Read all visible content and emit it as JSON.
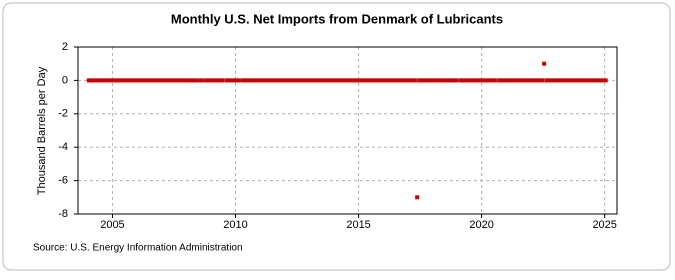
{
  "chart_data": {
    "type": "scatter",
    "title": "Monthly U.S. Net Imports from Denmark of Lubricants",
    "y_label": "Thousand Barrels per Day",
    "source": "Source: U.S. Energy Information Administration",
    "color": "#cc0000",
    "grid": true,
    "xlim": [
      2003.6,
      2025.5
    ],
    "ylim": [
      -8,
      2
    ],
    "xticks": [
      2005,
      2010,
      2015,
      2020,
      2025
    ],
    "yticks": [
      -8,
      -6,
      -4,
      -2,
      0,
      2
    ],
    "x": [
      2004.04,
      2004.13,
      2004.21,
      2004.29,
      2004.38,
      2004.46,
      2004.54,
      2004.63,
      2004.71,
      2004.79,
      2004.88,
      2004.96,
      2005.04,
      2005.13,
      2005.21,
      2005.29,
      2005.38,
      2005.46,
      2005.54,
      2005.63,
      2005.71,
      2005.79,
      2005.88,
      2005.96,
      2006.04,
      2006.13,
      2006.21,
      2006.29,
      2006.38,
      2006.46,
      2006.54,
      2006.63,
      2006.71,
      2006.79,
      2006.88,
      2006.96,
      2007.04,
      2007.13,
      2007.21,
      2007.29,
      2007.38,
      2007.46,
      2007.54,
      2007.63,
      2007.71,
      2007.79,
      2007.88,
      2007.96,
      2008.04,
      2008.13,
      2008.21,
      2008.29,
      2008.38,
      2008.46,
      2008.54,
      2008.63,
      2008.71,
      2008.79,
      2008.88,
      2008.96,
      2009.04,
      2009.13,
      2009.21,
      2009.29,
      2009.38,
      2009.46,
      2009.54,
      2009.63,
      2009.71,
      2009.79,
      2009.88,
      2009.96,
      2010.04,
      2010.13,
      2010.21,
      2010.29,
      2010.38,
      2010.46,
      2010.54,
      2010.63,
      2010.71,
      2010.79,
      2010.88,
      2010.96,
      2011.04,
      2011.13,
      2011.21,
      2011.29,
      2011.38,
      2011.46,
      2011.54,
      2011.63,
      2011.71,
      2011.79,
      2011.88,
      2011.96,
      2012.04,
      2012.13,
      2012.21,
      2012.29,
      2012.38,
      2012.46,
      2012.54,
      2012.63,
      2012.71,
      2012.79,
      2012.88,
      2012.96,
      2013.04,
      2013.13,
      2013.21,
      2013.29,
      2013.38,
      2013.46,
      2013.54,
      2013.63,
      2013.71,
      2013.79,
      2013.88,
      2013.96,
      2014.04,
      2014.13,
      2014.21,
      2014.29,
      2014.38,
      2014.46,
      2014.54,
      2014.63,
      2014.71,
      2014.79,
      2014.88,
      2014.96,
      2015.04,
      2015.13,
      2015.21,
      2015.29,
      2015.38,
      2015.46,
      2015.54,
      2015.63,
      2015.71,
      2015.79,
      2015.88,
      2015.96,
      2016.04,
      2016.13,
      2016.21,
      2016.29,
      2016.38,
      2016.46,
      2016.54,
      2016.63,
      2016.71,
      2016.79,
      2016.88,
      2016.96,
      2017.04,
      2017.13,
      2017.21,
      2017.29,
      2017.38,
      2017.46,
      2017.54,
      2017.63,
      2017.71,
      2017.79,
      2017.88,
      2017.96,
      2018.04,
      2018.13,
      2018.21,
      2018.29,
      2018.38,
      2018.46,
      2018.54,
      2018.63,
      2018.71,
      2018.79,
      2018.88,
      2018.96,
      2019.04,
      2019.13,
      2019.21,
      2019.29,
      2019.38,
      2019.46,
      2019.54,
      2019.63,
      2019.71,
      2019.79,
      2019.88,
      2019.96,
      2020.04,
      2020.13,
      2020.21,
      2020.29,
      2020.38,
      2020.46,
      2020.54,
      2020.63,
      2020.71,
      2020.79,
      2020.88,
      2020.96,
      2021.04,
      2021.13,
      2021.21,
      2021.29,
      2021.38,
      2021.46,
      2021.54,
      2021.63,
      2021.71,
      2021.79,
      2021.88,
      2021.96,
      2022.04,
      2022.13,
      2022.21,
      2022.29,
      2022.38,
      2022.46,
      2022.54,
      2022.63,
      2022.71,
      2022.79,
      2022.88,
      2022.96,
      2023.04,
      2023.13,
      2023.21,
      2023.29,
      2023.38,
      2023.46,
      2023.54,
      2023.63,
      2023.71,
      2023.79,
      2023.88,
      2023.96,
      2024.04,
      2024.13,
      2024.21,
      2024.29,
      2024.38,
      2024.46,
      2024.54,
      2024.63,
      2024.71,
      2024.79,
      2024.88,
      2024.96,
      2025.04
    ],
    "values": [
      0,
      0,
      0,
      0,
      0,
      0,
      0,
      0,
      0,
      0,
      0,
      0,
      0,
      0,
      0,
      0,
      0,
      0,
      0,
      0,
      0,
      0,
      0,
      0,
      0,
      0,
      0,
      0,
      0,
      0,
      0,
      0,
      0,
      0,
      0,
      0,
      0,
      0,
      0,
      0,
      0,
      0,
      0,
      0,
      0,
      0,
      0,
      0,
      0,
      0,
      0,
      0,
      0,
      null,
      0,
      0,
      null,
      0,
      0,
      0,
      0,
      0,
      0,
      0,
      0,
      0,
      null,
      0,
      0,
      0,
      0,
      0,
      0,
      0,
      null,
      0,
      0,
      0,
      0,
      0,
      0,
      0,
      0,
      0,
      0,
      0,
      0,
      0,
      0,
      0,
      0,
      0,
      0,
      0,
      0,
      0,
      0,
      0,
      0,
      0,
      0,
      0,
      0,
      0,
      0,
      0,
      0,
      0,
      0,
      0,
      0,
      0,
      0,
      0,
      0,
      0,
      0,
      0,
      0,
      0,
      0,
      0,
      0,
      0,
      0,
      0,
      0,
      0,
      0,
      0,
      0,
      0,
      0,
      0,
      0,
      0,
      0,
      0,
      0,
      0,
      0,
      0,
      0,
      0,
      0,
      0,
      0,
      0,
      0,
      0,
      0,
      0,
      0,
      0,
      0,
      0,
      0,
      0,
      0,
      0,
      -7,
      0,
      0,
      0,
      0,
      0,
      0,
      0,
      0,
      0,
      0,
      0,
      0,
      0,
      0,
      0,
      0,
      0,
      0,
      0,
      null,
      0,
      0,
      0,
      0,
      0,
      0,
      0,
      0,
      0,
      0,
      0,
      0,
      0,
      0,
      0,
      0,
      0,
      0,
      null,
      0,
      0,
      0,
      0,
      0,
      0,
      0,
      0,
      0,
      0,
      0,
      0,
      0,
      0,
      0,
      0,
      0,
      0,
      0,
      0,
      0,
      0,
      1,
      0,
      0,
      0,
      0,
      0,
      0,
      0,
      0,
      0,
      0,
      0,
      0,
      0,
      0,
      0,
      0,
      0,
      0,
      0,
      0,
      0,
      0,
      0,
      0,
      0,
      0,
      0,
      0,
      0,
      0
    ]
  }
}
